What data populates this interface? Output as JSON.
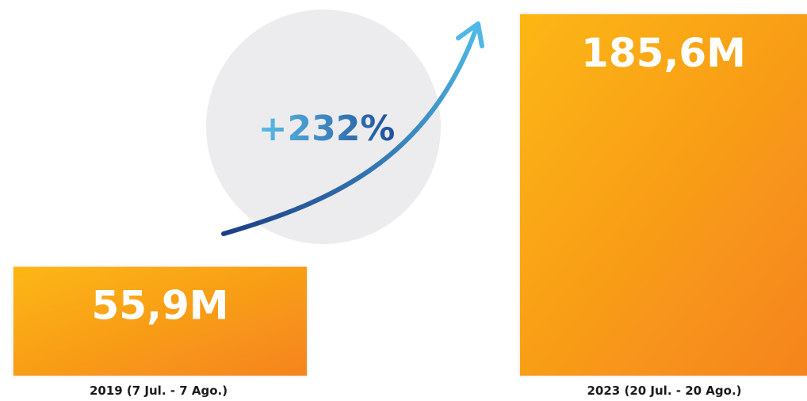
{
  "colors": {
    "bar_gradient_start": "#fcb711",
    "bar_gradient_end": "#f5841f",
    "circle": "#ececee",
    "arrow_start": "#1b3f86",
    "arrow_end": "#4fb8e6",
    "text_dark": "#1a1a1a"
  },
  "growth": {
    "label": "+232%"
  },
  "chart_data": {
    "type": "bar",
    "categories": [
      "2019 (7 Jul. - 7 Ago.)",
      "2023 (20 Jul. - 20 Ago.)"
    ],
    "values": [
      55.9,
      185.6
    ],
    "value_labels": [
      "55,9M",
      "185,6M"
    ],
    "title": "",
    "xlabel": "",
    "ylabel": "",
    "ylim": [
      0,
      185.6
    ],
    "grid": false,
    "legend": "none"
  }
}
